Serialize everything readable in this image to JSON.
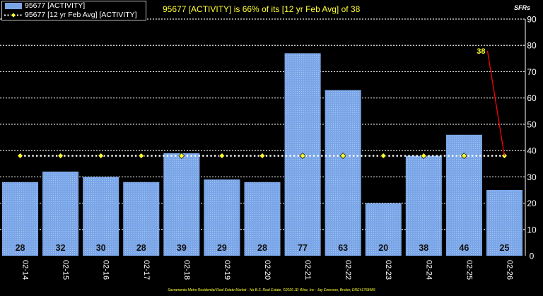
{
  "legend": {
    "series1": "95677 [ACTIVITY]",
    "series2": "95677 [12 yr Feb Avg] [ACTIVITY]"
  },
  "headline": "95677 [ACTIVITY] is 66% of its [12 yr Feb Avg] of 38",
  "unit_label": "SFRs",
  "footer": "Sacramento Metro Residential Real Estate Market - No B.S. Real Estate, ©2026 JD Wise, Inc - Jay Emerson, Broker, DRE#1768485",
  "avg_callout": "38",
  "colors": {
    "bar": "#7aa6e8",
    "bar_pattern": "#a9c6f2",
    "avg_line": "#ffffff",
    "avg_marker": "#ffff33",
    "callout_line": "#ff0000",
    "callout_text": "#ffff33",
    "background": "#000000"
  },
  "chart_data": {
    "type": "bar",
    "categories": [
      "02-14",
      "02-15",
      "02-16",
      "02-17",
      "02-18",
      "02-19",
      "02-20",
      "02-21",
      "02-22",
      "02-23",
      "02-24",
      "02-25",
      "02-26"
    ],
    "series": [
      {
        "name": "95677 [ACTIVITY]",
        "type": "bar",
        "values": [
          28,
          32,
          30,
          28,
          39,
          29,
          28,
          77,
          63,
          20,
          38,
          46,
          25
        ]
      },
      {
        "name": "95677 [12 yr Feb Avg] [ACTIVITY]",
        "type": "line",
        "values": [
          38,
          38,
          38,
          38,
          38,
          38,
          38,
          38,
          38,
          38,
          38,
          38,
          38
        ]
      }
    ],
    "data_labels": [
      "28",
      "32",
      "30",
      "28",
      "39",
      "29",
      "28",
      "77",
      "63",
      "20",
      "38",
      "46",
      "25"
    ],
    "ylim": [
      0,
      90
    ],
    "yticks": [
      "0",
      "10",
      "20",
      "30",
      "40",
      "50",
      "60",
      "70",
      "80",
      "90"
    ],
    "ytick_values": [
      0,
      10,
      20,
      30,
      40,
      50,
      60,
      70,
      80,
      90
    ],
    "ylabel": "SFRs",
    "grid": true,
    "legend_position": "top-left"
  }
}
